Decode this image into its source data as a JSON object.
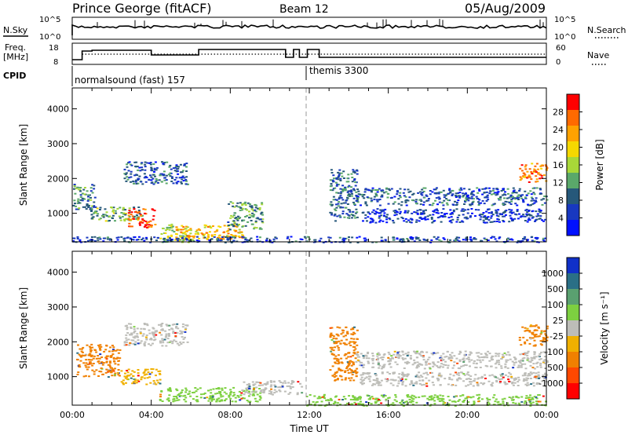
{
  "header": {
    "station": "Prince George (fitACF)",
    "beam": "Beam 12",
    "date": "05/Aug/2009"
  },
  "panels": {
    "noise": {
      "left_label": "N.Sky",
      "left_ticks": [
        "10^5",
        "10^0"
      ],
      "right_ticks": [
        "10^5",
        "10^0"
      ],
      "right_label": "N.Search",
      "series": [
        {
          "name": "N.Sky",
          "style": "solid"
        },
        {
          "name": "N.Search",
          "style": "dotted"
        }
      ]
    },
    "freq": {
      "left_label_1": "Freq.",
      "left_label_2": "[MHz]",
      "left_ticks": [
        "18",
        "8"
      ],
      "right_ticks": [
        "60",
        "0"
      ],
      "right_label": "Nave",
      "series": [
        {
          "name": "Freq.",
          "style": "solid"
        },
        {
          "name": "Nave",
          "style": "dotted"
        }
      ]
    },
    "cpid": {
      "label": "CPID",
      "segments": [
        {
          "label": "normalsound (fast) 157",
          "start_hour": 0
        },
        {
          "label": "themis 3300",
          "start_hour": 12
        }
      ]
    }
  },
  "chart_data": [
    {
      "type": "heatmap",
      "title": "",
      "xlabel": "",
      "ylabel": "Slant Range [km]",
      "xlim": [
        0,
        24
      ],
      "ylim": [
        180,
        4600
      ],
      "yticks": [
        1000,
        2000,
        3000,
        4000
      ],
      "colorbar": {
        "label": "Power [dB]",
        "ticks": [
          "28",
          "24",
          "20",
          "16",
          "12",
          "8",
          "4"
        ],
        "colors": [
          "#ff0000",
          "#ff6a00",
          "#ffa200",
          "#f5d800",
          "#a8d838",
          "#5aa86a",
          "#26587a",
          "#1838c0",
          "#0010ff"
        ]
      },
      "regions": [
        {
          "x": [
            0.0,
            1.2
          ],
          "y": [
            1100,
            1850
          ],
          "level": 0.3
        },
        {
          "x": [
            0.9,
            3.5
          ],
          "y": [
            800,
            1200
          ],
          "level": 0.4
        },
        {
          "x": [
            2.8,
            4.2
          ],
          "y": [
            600,
            1150
          ],
          "level": 0.9
        },
        {
          "x": [
            2.6,
            5.8
          ],
          "y": [
            1850,
            2500
          ],
          "level": 0.2
        },
        {
          "x": [
            4.4,
            6.0
          ],
          "y": [
            180,
            700
          ],
          "level": 0.5
        },
        {
          "x": [
            5.2,
            8.6
          ],
          "y": [
            250,
            700
          ],
          "level": 0.7
        },
        {
          "x": [
            7.8,
            9.6
          ],
          "y": [
            550,
            1350
          ],
          "level": 0.35
        },
        {
          "x": [
            0.0,
            24.0
          ],
          "y": [
            180,
            350
          ],
          "level": 0.15
        },
        {
          "x": [
            13.0,
            14.4
          ],
          "y": [
            800,
            2300
          ],
          "level": 0.25
        },
        {
          "x": [
            14.3,
            24.0
          ],
          "y": [
            1250,
            1750
          ],
          "level": 0.2
        },
        {
          "x": [
            14.5,
            24.0
          ],
          "y": [
            750,
            1150
          ],
          "level": 0.12
        },
        {
          "x": [
            22.6,
            24.0
          ],
          "y": [
            1900,
            2450
          ],
          "level": 0.85
        }
      ]
    },
    {
      "type": "heatmap",
      "title": "",
      "xlabel": "Time UT",
      "ylabel": "Slant Range [km]",
      "xlim": [
        0,
        24
      ],
      "ylim": [
        180,
        4600
      ],
      "xticks": [
        "00:00",
        "04:00",
        "08:00",
        "12:00",
        "16:00",
        "20:00",
        "00:00"
      ],
      "yticks": [
        1000,
        2000,
        3000,
        4000
      ],
      "colorbar": {
        "label": "Velocity [m s⁻¹]",
        "ticks": [
          "1000",
          "500",
          "100",
          "25",
          "-25",
          "-100",
          "-500",
          "-1000"
        ],
        "colors": [
          "#1030c8",
          "#2a6f86",
          "#5aa070",
          "#7dd040",
          "#bdbdb8",
          "#f0b000",
          "#f08000",
          "#ff4800",
          "#ff0000"
        ]
      },
      "regions": [
        {
          "x": [
            0.2,
            2.4
          ],
          "y": [
            1000,
            1950
          ],
          "color_index": 6
        },
        {
          "x": [
            2.4,
            4.4
          ],
          "y": [
            800,
            1250
          ],
          "color_index": 5
        },
        {
          "x": [
            2.6,
            5.8
          ],
          "y": [
            1900,
            2550
          ],
          "color_index": 4
        },
        {
          "x": [
            4.4,
            9.5
          ],
          "y": [
            300,
            700
          ],
          "color_index": 3
        },
        {
          "x": [
            8.5,
            11.6
          ],
          "y": [
            500,
            900
          ],
          "color_index": 4
        },
        {
          "x": [
            11.8,
            24.0
          ],
          "y": [
            180,
            500
          ],
          "color_index": 3
        },
        {
          "x": [
            13.0,
            14.4
          ],
          "y": [
            900,
            2450
          ],
          "color_index": 6
        },
        {
          "x": [
            14.3,
            24.0
          ],
          "y": [
            1250,
            1750
          ],
          "color_index": 4
        },
        {
          "x": [
            14.5,
            24.0
          ],
          "y": [
            750,
            1150
          ],
          "color_index": 4
        },
        {
          "x": [
            22.6,
            24.0
          ],
          "y": [
            1900,
            2500
          ],
          "color_index": 6
        }
      ]
    }
  ]
}
